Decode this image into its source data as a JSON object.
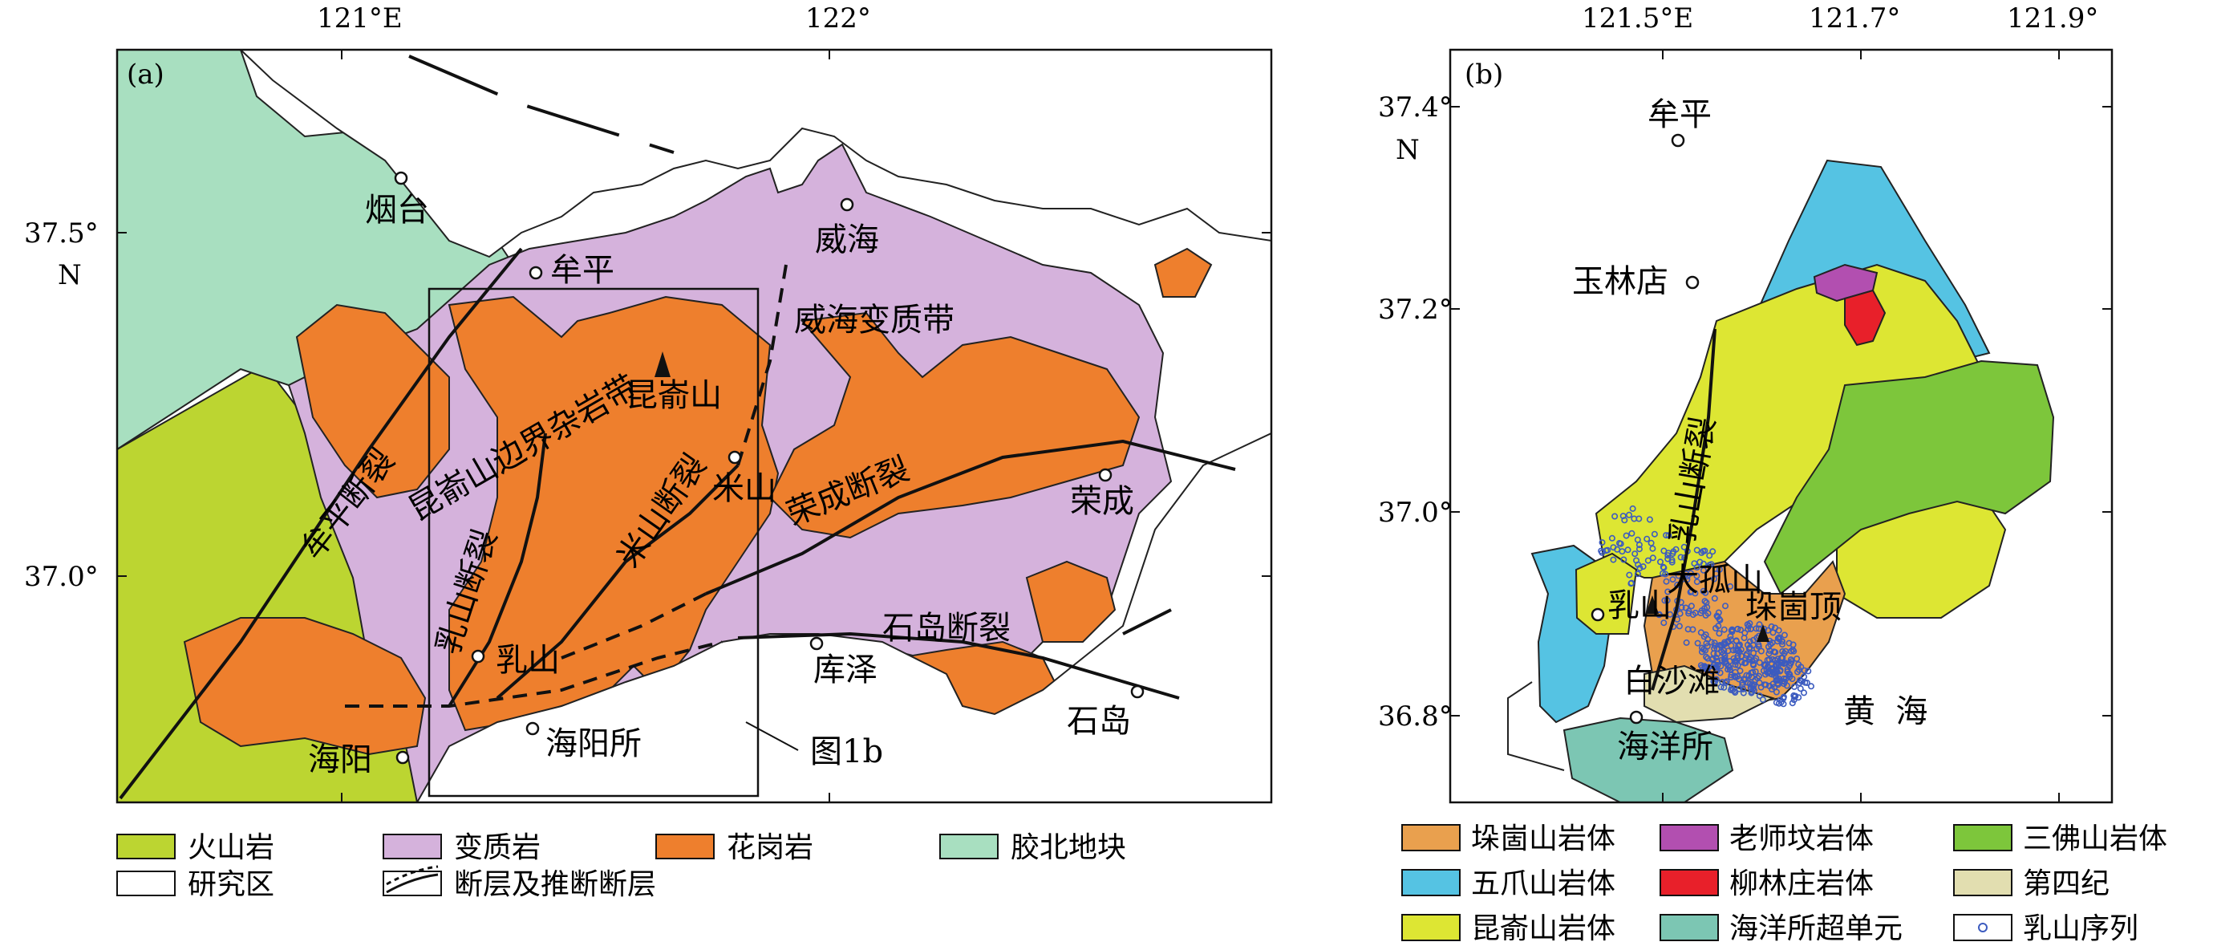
{
  "panel_a": {
    "label": "(a)",
    "x_ticks": [
      "121°E",
      "122°"
    ],
    "y_ticks": [
      "37.5°",
      "N",
      "37.0°"
    ],
    "towns": [
      "烟台",
      "牟平",
      "威海",
      "荣成",
      "库泽",
      "石岛",
      "乳山",
      "海阳所",
      "海阳",
      "米山",
      "昆嵛山"
    ],
    "region_labels": [
      "威海变质带",
      "昆嵛山边界杂岩带"
    ],
    "fault_labels": [
      "牟平断裂",
      "乳山断裂",
      "米山断裂",
      "荣成断裂",
      "石岛断裂"
    ],
    "inset_label": "图1b",
    "legend": [
      {
        "label": "火山岩",
        "color": "#bcd531"
      },
      {
        "label": "变质岩",
        "color": "#d5b2dc"
      },
      {
        "label": "花岗岩",
        "color": "#ee7f2d"
      },
      {
        "label": "胶北地块",
        "color": "#a8dfc0"
      },
      {
        "label": "研究区",
        "color": "#ffffff"
      },
      {
        "label": "断层及推断断层",
        "color": "#111111"
      }
    ]
  },
  "panel_b": {
    "label": "(b)",
    "x_ticks": [
      "121.5°E",
      "121.7°",
      "121.9°"
    ],
    "y_ticks": [
      "37.4°",
      "N",
      "37.2°",
      "37.0°",
      "36.8°"
    ],
    "places": [
      "牟平",
      "玉林店",
      "大孤山",
      "乳山",
      "垛崮顶",
      "白沙滩",
      "海洋所",
      "黄  海"
    ],
    "fault_label": "乳山断裂",
    "legend": [
      {
        "label": "垛崮山岩体",
        "color": "#e9a04e"
      },
      {
        "label": "老师坟岩体",
        "color": "#b24fb0"
      },
      {
        "label": "三佛山岩体",
        "color": "#7dc63b"
      },
      {
        "label": "五爪山岩体",
        "color": "#55c3e3"
      },
      {
        "label": "柳林庄岩体",
        "color": "#e8202a"
      },
      {
        "label": "第四纪",
        "color": "#e2deb0"
      },
      {
        "label": "昆嵛山岩体",
        "color": "#dde633"
      },
      {
        "label": "海洋所超单元",
        "color": "#7cc6b3"
      },
      {
        "label": "乳山序列",
        "color": "#3c5bbf"
      }
    ]
  }
}
